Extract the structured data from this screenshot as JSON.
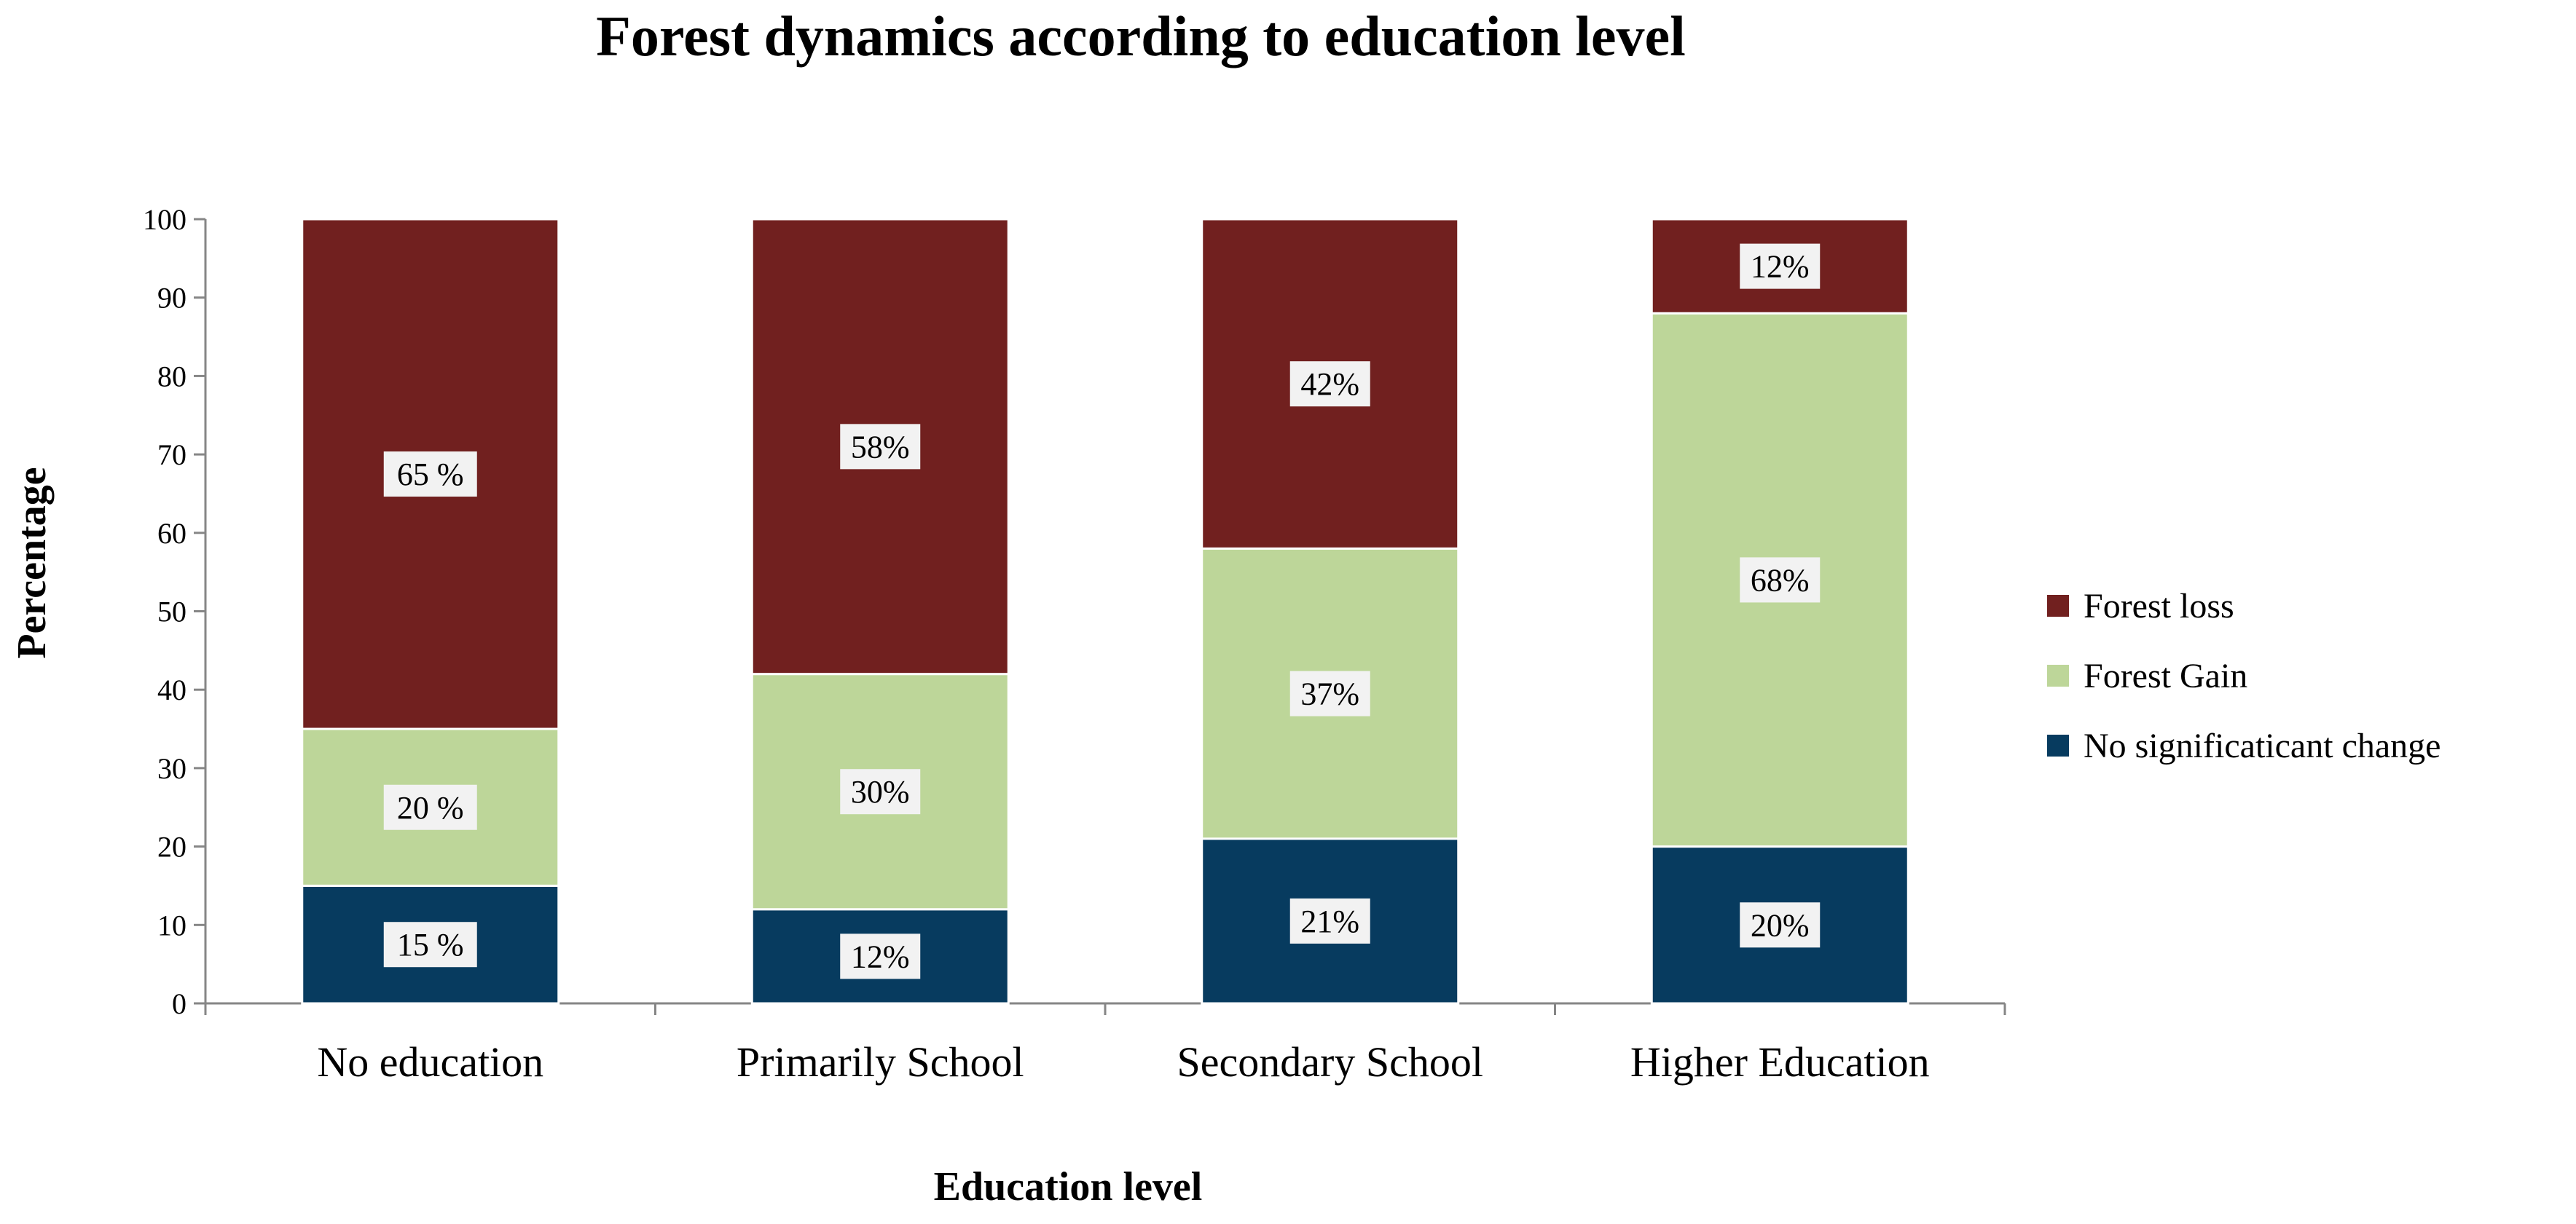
{
  "chart_data": {
    "type": "bar",
    "stacked": true,
    "title": "Forest dynamics according to education level",
    "xlabel": "Education level",
    "ylabel": "Percentage",
    "ylim": [
      0,
      100
    ],
    "yticks": [
      0,
      10,
      20,
      30,
      40,
      50,
      60,
      70,
      80,
      90,
      100
    ],
    "grid": false,
    "legend_position": "right",
    "categories": [
      "No education",
      "Primarily School",
      "Secondary School",
      "Higher Education"
    ],
    "series": [
      {
        "name": "No significaticant change",
        "color": "#073b5f",
        "values": [
          15,
          12,
          21,
          20
        ],
        "labels": [
          "15 %",
          "12%",
          "21%",
          "20%"
        ]
      },
      {
        "name": "Forest Gain",
        "color": "#bdd699",
        "values": [
          20,
          30,
          37,
          68
        ],
        "labels": [
          "20 %",
          "30%",
          "37%",
          "68%"
        ]
      },
      {
        "name": "Forest loss",
        "color": "#71201f",
        "values": [
          65,
          58,
          42,
          12
        ],
        "labels": [
          "65 %",
          "58%",
          "42%",
          "12%"
        ]
      }
    ],
    "legend_order": [
      "Forest loss",
      "Forest Gain",
      "No significaticant change"
    ]
  }
}
